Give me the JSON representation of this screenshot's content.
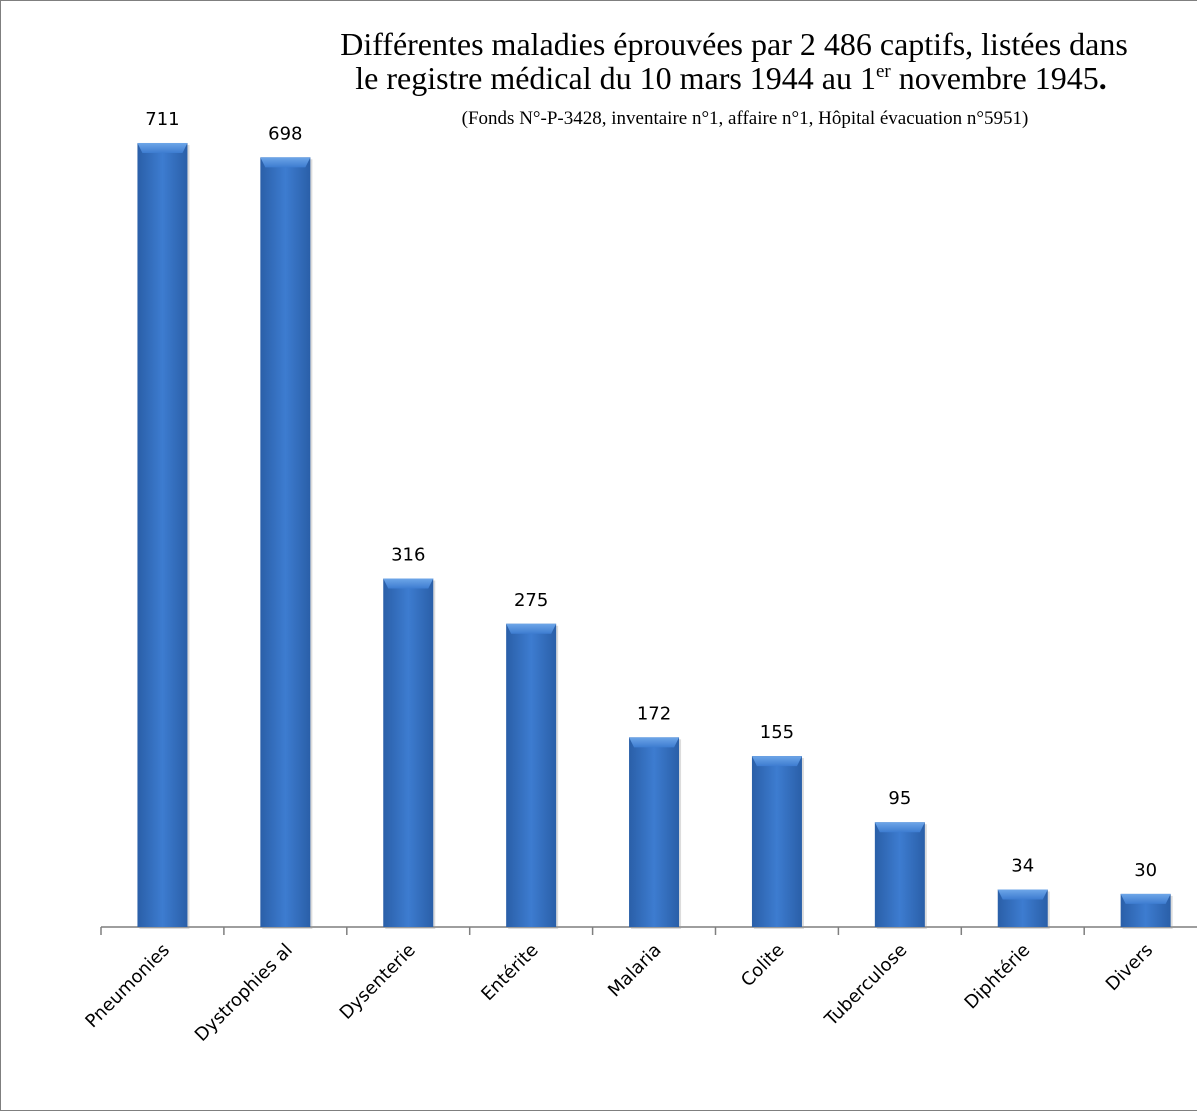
{
  "chart_data": {
    "type": "bar",
    "title_line1": "Différentes maladies éprouvées par 2 486 captifs, listées  dans",
    "title_line2_pre": "le registre médical du 10 mars 1944 au 1",
    "title_line2_sup": "er",
    "title_line2_post": "  novembre 1945",
    "title_line2_dot": ".",
    "subtitle": "(Fonds N°-P-3428, inventaire n°1, affaire n°1, Hôpital évacuation n°5951)",
    "categories": [
      "Pneumonies",
      "Dystrophies al",
      "Dysenterie",
      "Entérite",
      "Malaria",
      "Colite",
      "Tuberculose",
      "Diphtérie",
      "Divers"
    ],
    "values": [
      711,
      698,
      316,
      275,
      172,
      155,
      95,
      34,
      30
    ],
    "data_labels": [
      "711",
      "698",
      "316",
      "275",
      "172",
      "155",
      "95",
      "34",
      "30"
    ],
    "xlabel": "",
    "ylabel": "",
    "ylim": [
      0,
      800
    ],
    "grid": false,
    "legend": "none",
    "bar_color": "#3d7cd0",
    "bar_color_dark": "#2a5fa8",
    "bar_color_light": "#6ea6e8",
    "axis_color": "#7f7f7f"
  }
}
